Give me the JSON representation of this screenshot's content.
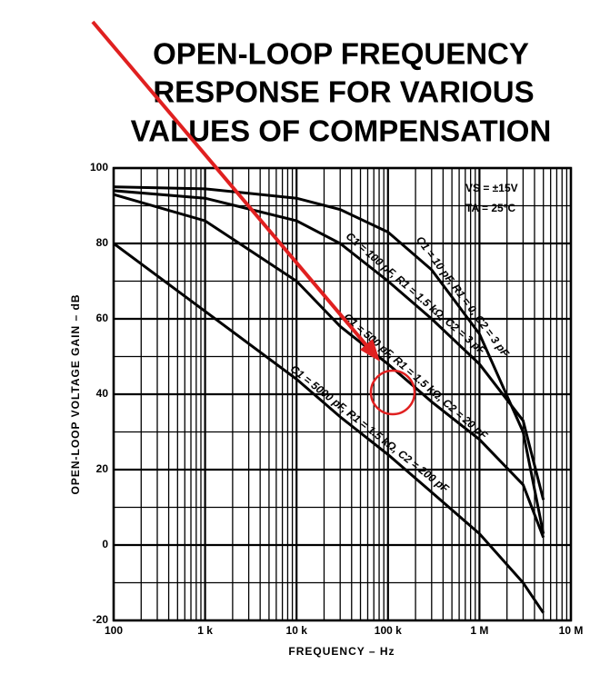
{
  "chart_data": {
    "type": "line",
    "title": [
      "OPEN-LOOP FREQUENCY",
      "RESPONSE FOR VARIOUS",
      "VALUES OF COMPENSATION"
    ],
    "xlabel": "FREQUENCY – Hz",
    "ylabel": "OPEN-LOOP VOLTAGE GAIN – dB",
    "annotations": [
      "VS = ±15V",
      "TA = 25°C"
    ],
    "x": [
      100,
      1000,
      10000,
      30000,
      100000,
      300000,
      1000000,
      3000000,
      5000000
    ],
    "series": [
      {
        "name": "C1 = 10 pF, R1 = 0, C2 = 3 pF",
        "color": "#000000",
        "values": [
          95,
          94.5,
          92,
          89,
          83,
          73,
          56,
          30,
          3
        ]
      },
      {
        "name": "C1 = 100 pF, R1 = 1.5 kΩ, C2 = 3 pF",
        "color": "#000000",
        "values": [
          94,
          92,
          86,
          80,
          70,
          60,
          48,
          33,
          12
        ]
      },
      {
        "name": "C1 = 500 pF, R1 = 1.5 kΩ, C2 = 20 pF",
        "color": "#000000",
        "values": [
          93,
          86,
          70,
          58,
          48,
          38,
          28,
          16,
          2
        ]
      },
      {
        "name": "C1 = 5000 pF, R1 = 1.5 kΩ, C2 = 200 pF",
        "color": "#000000",
        "values": [
          80,
          62,
          44,
          34,
          24,
          14,
          3,
          -10,
          -18
        ]
      }
    ],
    "xlog": true,
    "xlim": [
      100,
      10000000
    ],
    "xticks": [
      {
        "value": 100,
        "label": "100"
      },
      {
        "value": 1000,
        "label": "1 k"
      },
      {
        "value": 10000,
        "label": "10 k"
      },
      {
        "value": 100000,
        "label": "100 k"
      },
      {
        "value": 1000000,
        "label": "1 M"
      },
      {
        "value": 10000000,
        "label": "10 M"
      }
    ],
    "ylim": [
      -20,
      100
    ],
    "yticks": [
      -20,
      0,
      20,
      40,
      60,
      80,
      100
    ],
    "grid": true
  }
}
